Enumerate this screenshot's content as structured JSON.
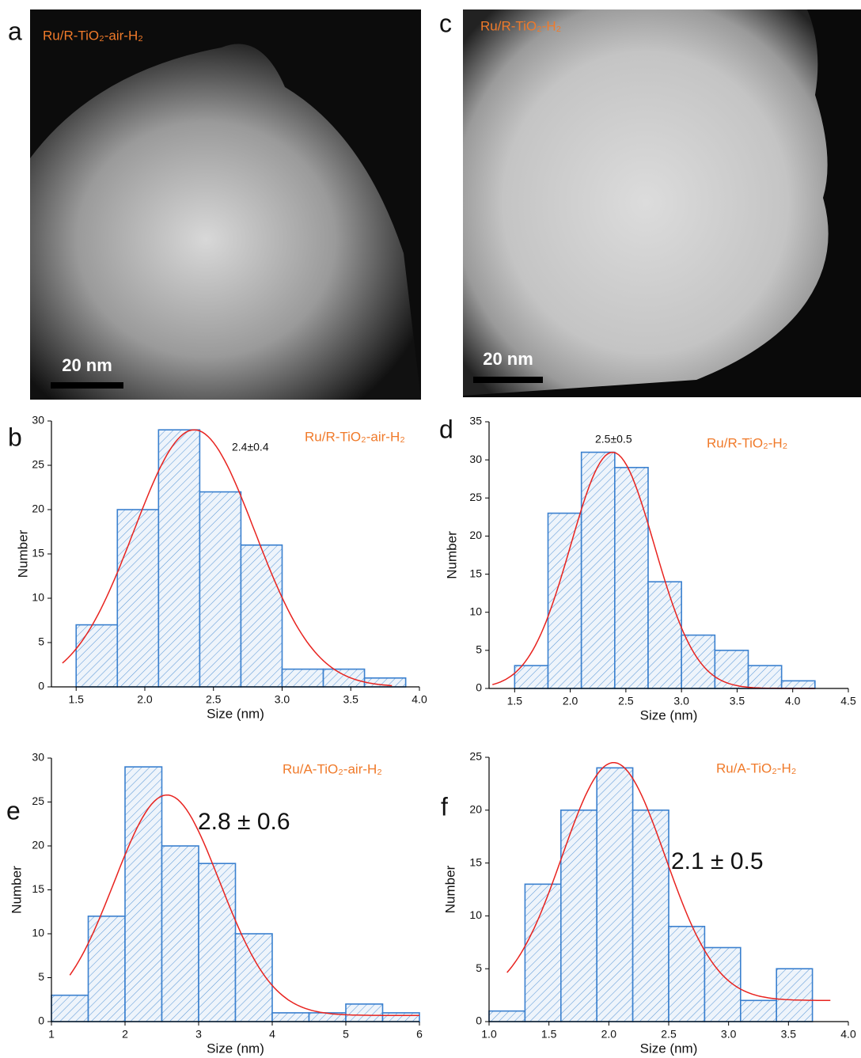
{
  "images": [
    {
      "letter": "a",
      "label": "Ru/R-TiO₂-air-H₂",
      "scale_bar": "20 nm"
    },
    {
      "letter": "c",
      "label": "Ru/R-TiO₂-H₂",
      "scale_bar": "20 nm"
    }
  ],
  "chart_data": [
    {
      "type": "histogram",
      "letter": "b",
      "label": "Ru/R-TiO₂-air-H₂",
      "annotation": "2.4±0.4",
      "x_label": "Size (nm)",
      "y_label": "Number",
      "bins": [
        1.5,
        1.8,
        2.1,
        2.4,
        2.7,
        3.0,
        3.3,
        3.6,
        3.9
      ],
      "values": [
        7,
        20,
        29,
        22,
        16,
        2,
        2,
        1
      ],
      "color": "#3a80cf",
      "fit": {
        "mean": 2.36,
        "sd": 0.44,
        "peak": 29,
        "offset": 0,
        "from": 1.4,
        "to": 3.8,
        "color": "#e8231f"
      },
      "xlim": [
        1.32,
        4.0
      ],
      "ylim": [
        0,
        30
      ],
      "xticks": [
        1.5,
        {
          "value": 2,
          "label": "2.0"
        },
        2.5,
        {
          "value": 3,
          "label": "3.0"
        },
        3.5,
        {
          "value": 4,
          "label": "4.0"
        }
      ],
      "yticks": [
        0,
        5,
        10,
        15,
        20,
        25,
        30
      ]
    },
    {
      "type": "histogram",
      "letter": "d",
      "label": "Ru/R-TiO₂-H₂",
      "annotation": "2.5±0.5",
      "x_label": "Size (nm)",
      "y_label": "Number",
      "bins": [
        1.5,
        1.8,
        2.1,
        2.4,
        2.7,
        3.0,
        3.3,
        3.6,
        3.9,
        4.2
      ],
      "values": [
        3,
        23,
        31,
        29,
        14,
        7,
        5,
        3,
        1
      ],
      "color": "#3a80cf",
      "fit": {
        "mean": 2.38,
        "sd": 0.376,
        "peak": 31,
        "offset": 0,
        "from": 1.3,
        "to": 4.2,
        "color": "#e8231f"
      },
      "xlim": [
        1.27,
        4.5
      ],
      "ylim": [
        0,
        35
      ],
      "xticks": [
        1.5,
        {
          "value": 2,
          "label": "2.0"
        },
        2.5,
        {
          "value": 3,
          "label": "3.0"
        },
        3.5,
        {
          "value": 4,
          "label": "4.0"
        },
        4.5
      ],
      "yticks": [
        0,
        5,
        10,
        15,
        20,
        25,
        30,
        35
      ]
    },
    {
      "type": "histogram",
      "letter": "e",
      "label": "Ru/A-TiO₂-air-H₂",
      "annotation": "2.8 ± 0.6",
      "x_label": "Size (nm)",
      "y_label": "Number",
      "bins": [
        1,
        1.5,
        2,
        2.5,
        3,
        3.5,
        4,
        4.5,
        5,
        5.5,
        6
      ],
      "values": [
        3,
        12,
        29,
        20,
        18,
        10,
        1,
        1,
        2,
        1
      ],
      "color": "#3a80cf",
      "fit": {
        "mean": 2.57,
        "sd": 0.716,
        "peak": 25.8,
        "offset": 0.7,
        "from": 1.25,
        "to": 6,
        "color": "#e8231f"
      },
      "xlim": [
        1,
        6
      ],
      "ylim": [
        0,
        30
      ],
      "xticks": [
        1,
        2,
        3,
        4,
        5,
        6
      ],
      "yticks": [
        0,
        5,
        10,
        15,
        20,
        25,
        30
      ]
    },
    {
      "type": "histogram",
      "letter": "f",
      "label": "Ru/A-TiO₂-H₂",
      "annotation": "2.1 ± 0.5",
      "x_label": "Size (nm)",
      "y_label": "Number",
      "bins": [
        1.0,
        1.3,
        1.6,
        1.9,
        2.2,
        2.5,
        2.8,
        3.1,
        3.4,
        3.7
      ],
      "values": [
        1,
        13,
        20,
        24,
        20,
        9,
        7,
        2,
        5
      ],
      "color": "#3a80cf",
      "fit": {
        "mean": 2.04,
        "sd": 0.43,
        "peak": 24.5,
        "offset": 2,
        "from": 1.15,
        "to": 3.85,
        "color": "#e8231f"
      },
      "xlim": [
        1.0,
        4.0
      ],
      "ylim": [
        0,
        25
      ],
      "xticks": [
        {
          "value": 1,
          "label": "1.0"
        },
        1.5,
        {
          "value": 2,
          "label": "2.0"
        },
        2.5,
        {
          "value": 3,
          "label": "3.0"
        },
        3.5,
        {
          "value": 4,
          "label": "4.0"
        }
      ],
      "yticks": [
        0,
        5,
        10,
        15,
        20,
        25
      ]
    }
  ]
}
